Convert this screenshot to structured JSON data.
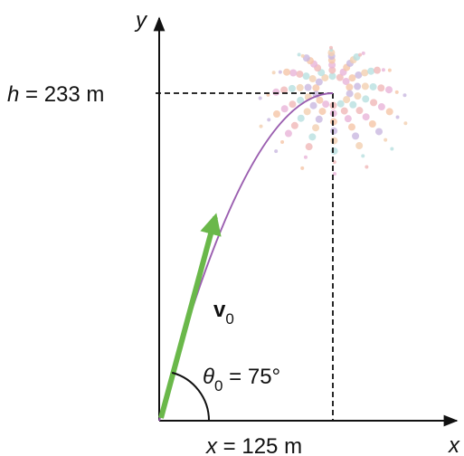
{
  "axes": {
    "y": "y",
    "x": "x"
  },
  "height_label": {
    "symbol": "h",
    "text": " = 233 m"
  },
  "velocity_label": {
    "symbol": "v",
    "subscript": "0"
  },
  "angle_label": {
    "symbol": "θ",
    "subscript": "0",
    "text": " = 75°"
  },
  "range_label": {
    "symbol": "x",
    "text": " = 125 m"
  }
}
